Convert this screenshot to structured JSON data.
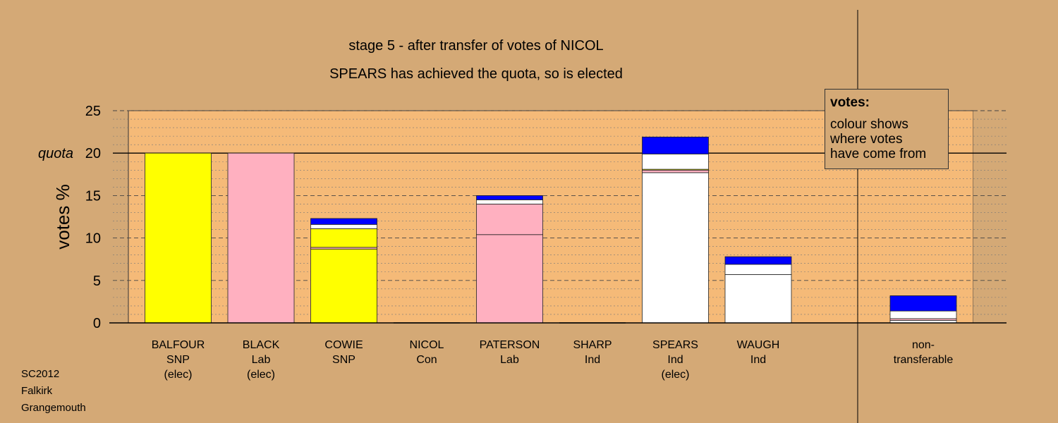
{
  "chart_data": {
    "type": "bar",
    "stacked": true,
    "title": "stage 5 - after transfer of votes of NICOL",
    "subtitle": "SPEARS has achieved the quota, so is elected",
    "ylabel": "votes %",
    "ylim": [
      0,
      25
    ],
    "yticks": [
      0,
      5,
      10,
      15,
      20,
      25
    ],
    "quota_label": "quota",
    "quota_value": 20,
    "grid": true,
    "colors": {
      "SNP": "#ffff00",
      "Lab": "#ffb0c0",
      "Ind": "#ffffff",
      "Con": "#0000ff",
      "Unknown": "#d2a36a"
    },
    "categories": [
      {
        "lines": [
          "BALFOUR",
          "SNP",
          "(elec)"
        ],
        "segments": [
          {
            "color": "#ffff00",
            "value": 20.0
          }
        ]
      },
      {
        "lines": [
          "BLACK",
          "Lab",
          "(elec)"
        ],
        "segments": [
          {
            "color": "#ffb0c0",
            "value": 20.0
          }
        ]
      },
      {
        "lines": [
          "COWIE",
          "SNP"
        ],
        "segments": [
          {
            "color": "#ffff00",
            "value": 8.7
          },
          {
            "color": "#ffb0c0",
            "value": 0.2
          },
          {
            "color": "#ffff00",
            "value": 2.2
          },
          {
            "color": "#ffffff",
            "value": 0.5
          },
          {
            "color": "#0000ff",
            "value": 0.7
          }
        ]
      },
      {
        "lines": [
          "NICOL",
          "Con"
        ],
        "segments": []
      },
      {
        "lines": [
          "PATERSON",
          "Lab"
        ],
        "segments": [
          {
            "color": "#ffb0c0",
            "value": 10.4
          },
          {
            "color": "#ffb0c0",
            "value": 3.6
          },
          {
            "color": "#ffffff",
            "value": 0.5
          },
          {
            "color": "#0000ff",
            "value": 0.5
          }
        ]
      },
      {
        "lines": [
          "SHARP",
          "Ind"
        ],
        "segments": []
      },
      {
        "lines": [
          "SPEARS",
          "Ind",
          "(elec)"
        ],
        "segments": [
          {
            "color": "#ffffff",
            "value": 17.7
          },
          {
            "color": "#ffb0c0",
            "value": 0.3
          },
          {
            "color": "#ffff00",
            "value": 0.1
          },
          {
            "color": "#ffffff",
            "value": 1.8
          },
          {
            "color": "#0000ff",
            "value": 2.0
          }
        ]
      },
      {
        "lines": [
          "WAUGH",
          "Ind"
        ],
        "segments": [
          {
            "color": "#ffffff",
            "value": 5.7
          },
          {
            "color": "#ffffff",
            "value": 1.2
          },
          {
            "color": "#0000ff",
            "value": 0.9
          }
        ]
      },
      {
        "lines": [
          "non-",
          "transferable"
        ],
        "segments": [
          {
            "color": "#ffffff",
            "value": 0.3
          },
          {
            "color": "#ffb0c0",
            "value": 0.2
          },
          {
            "color": "#ffffff",
            "value": 0.9
          },
          {
            "color": "#0000ff",
            "value": 1.8
          }
        ]
      }
    ]
  },
  "legend": {
    "heading": "votes:",
    "lines": [
      "colour shows",
      "where votes",
      "have come from"
    ]
  },
  "footer": {
    "line1": "SC2012",
    "line2": "Falkirk",
    "line3": "Grangemouth"
  }
}
